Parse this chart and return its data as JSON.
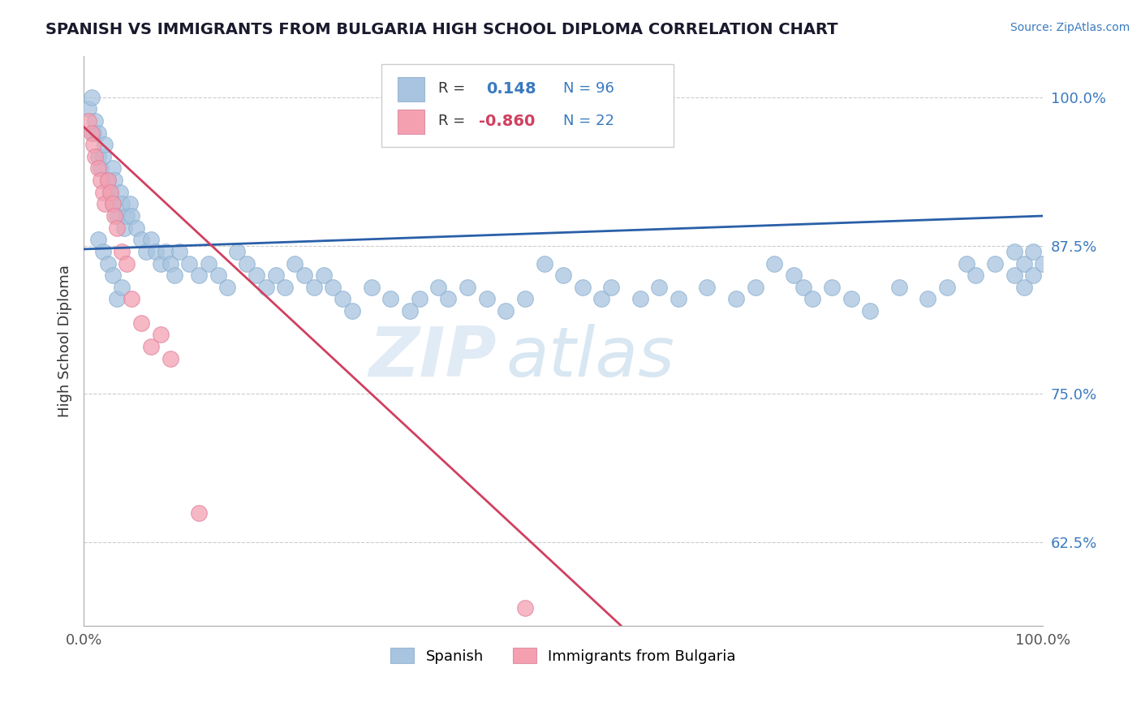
{
  "title": "SPANISH VS IMMIGRANTS FROM BULGARIA HIGH SCHOOL DIPLOMA CORRELATION CHART",
  "source": "Source: ZipAtlas.com",
  "ylabel": "High School Diploma",
  "xlim": [
    0.0,
    1.0
  ],
  "ylim": [
    0.555,
    1.035
  ],
  "yticks": [
    0.625,
    0.75,
    0.875,
    1.0
  ],
  "ytick_labels": [
    "62.5%",
    "75.0%",
    "87.5%",
    "100.0%"
  ],
  "xtick_positions": [
    0.0,
    1.0
  ],
  "xtick_labels": [
    "0.0%",
    "100.0%"
  ],
  "legend_r_blue": "0.148",
  "legend_n_blue": "96",
  "legend_r_pink": "-0.860",
  "legend_n_pink": "22",
  "legend_label_blue": "Spanish",
  "legend_label_pink": "Immigrants from Bulgaria",
  "blue_color": "#a8c4e0",
  "pink_color": "#f4a0b0",
  "blue_line_color": "#2a5fa8",
  "pink_line_color": "#d04060",
  "blue_scatter": {
    "x": [
      0.005,
      0.008,
      0.01,
      0.012,
      0.015,
      0.015,
      0.018,
      0.02,
      0.022,
      0.025,
      0.028,
      0.03,
      0.03,
      0.032,
      0.035,
      0.038,
      0.04,
      0.042,
      0.045,
      0.048,
      0.05,
      0.055,
      0.06,
      0.065,
      0.07,
      0.075,
      0.08,
      0.085,
      0.09,
      0.095,
      0.1,
      0.11,
      0.12,
      0.13,
      0.14,
      0.15,
      0.16,
      0.17,
      0.18,
      0.19,
      0.2,
      0.21,
      0.22,
      0.23,
      0.24,
      0.25,
      0.26,
      0.27,
      0.28,
      0.3,
      0.32,
      0.34,
      0.35,
      0.37,
      0.38,
      0.4,
      0.42,
      0.44,
      0.46,
      0.48,
      0.5,
      0.52,
      0.54,
      0.55,
      0.58,
      0.6,
      0.62,
      0.65,
      0.68,
      0.7,
      0.72,
      0.74,
      0.75,
      0.76,
      0.78,
      0.8,
      0.82,
      0.85,
      0.88,
      0.9,
      0.92,
      0.93,
      0.95,
      0.97,
      0.97,
      0.98,
      0.98,
      0.99,
      0.99,
      1.0,
      0.015,
      0.02,
      0.025,
      0.03,
      0.035,
      0.04
    ],
    "y": [
      0.99,
      1.0,
      0.97,
      0.98,
      0.95,
      0.97,
      0.94,
      0.95,
      0.96,
      0.93,
      0.92,
      0.94,
      0.91,
      0.93,
      0.9,
      0.92,
      0.91,
      0.89,
      0.9,
      0.91,
      0.9,
      0.89,
      0.88,
      0.87,
      0.88,
      0.87,
      0.86,
      0.87,
      0.86,
      0.85,
      0.87,
      0.86,
      0.85,
      0.86,
      0.85,
      0.84,
      0.87,
      0.86,
      0.85,
      0.84,
      0.85,
      0.84,
      0.86,
      0.85,
      0.84,
      0.85,
      0.84,
      0.83,
      0.82,
      0.84,
      0.83,
      0.82,
      0.83,
      0.84,
      0.83,
      0.84,
      0.83,
      0.82,
      0.83,
      0.86,
      0.85,
      0.84,
      0.83,
      0.84,
      0.83,
      0.84,
      0.83,
      0.84,
      0.83,
      0.84,
      0.86,
      0.85,
      0.84,
      0.83,
      0.84,
      0.83,
      0.82,
      0.84,
      0.83,
      0.84,
      0.86,
      0.85,
      0.86,
      0.87,
      0.85,
      0.86,
      0.84,
      0.87,
      0.85,
      0.86,
      0.88,
      0.87,
      0.86,
      0.85,
      0.83,
      0.84
    ]
  },
  "pink_scatter": {
    "x": [
      0.005,
      0.008,
      0.01,
      0.012,
      0.015,
      0.018,
      0.02,
      0.022,
      0.025,
      0.028,
      0.03,
      0.032,
      0.035,
      0.04,
      0.045,
      0.05,
      0.06,
      0.07,
      0.08,
      0.09,
      0.12,
      0.46
    ],
    "y": [
      0.98,
      0.97,
      0.96,
      0.95,
      0.94,
      0.93,
      0.92,
      0.91,
      0.93,
      0.92,
      0.91,
      0.9,
      0.89,
      0.87,
      0.86,
      0.83,
      0.81,
      0.79,
      0.8,
      0.78,
      0.65,
      0.57
    ]
  },
  "blue_line": {
    "x0": 0.0,
    "x1": 1.0,
    "y0": 0.872,
    "y1": 0.9
  },
  "pink_line": {
    "x0": 0.0,
    "x1": 0.56,
    "y0": 0.975,
    "y1": 0.555
  }
}
